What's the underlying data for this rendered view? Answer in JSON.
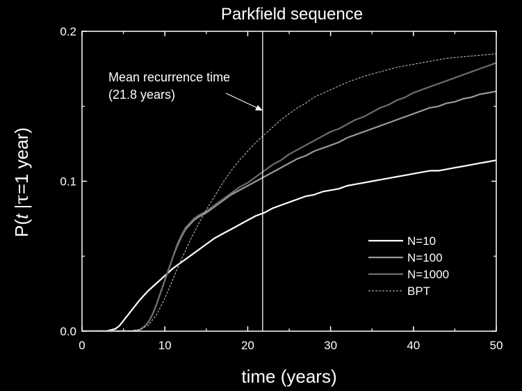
{
  "chart_data": {
    "type": "line",
    "title": "Parkfield sequence",
    "xlabel": "time (years)",
    "ylabel": {
      "prefix": "P(",
      "t": "t",
      "sep": " |",
      "tau": "τ",
      "suffix": "=1 year)"
    },
    "xlim": [
      0,
      50
    ],
    "ylim": [
      0,
      0.2
    ],
    "xticks": [
      0,
      10,
      20,
      30,
      40,
      50
    ],
    "xtick_labels": [
      "0",
      "10",
      "20",
      "30",
      "40",
      "50"
    ],
    "yticks": [
      0,
      0.1,
      0.2
    ],
    "ytick_labels": [
      "0.0",
      "0.1",
      "0.2"
    ],
    "grid": false,
    "legend_position": "bottom-right",
    "annotation": {
      "line1": "Mean recurrence time",
      "line2": "(21.8 years)",
      "x_value": 21.8
    },
    "series": [
      {
        "name": "N=10",
        "color": "#ffffff",
        "dash": "solid",
        "x": [
          0,
          3,
          4,
          4.5,
          5,
          6,
          7,
          8,
          9,
          10,
          11,
          12,
          13,
          14,
          15,
          16,
          17,
          18,
          19,
          20,
          21,
          22,
          23,
          24,
          25,
          26,
          27,
          28,
          29,
          30,
          31,
          32,
          33,
          34,
          35,
          36,
          37,
          38,
          39,
          40,
          41,
          42,
          43,
          44,
          45,
          46,
          47,
          48,
          49,
          50
        ],
        "y": [
          0,
          0.0002,
          0.0015,
          0.0035,
          0.007,
          0.014,
          0.021,
          0.027,
          0.032,
          0.037,
          0.042,
          0.046,
          0.05,
          0.054,
          0.058,
          0.062,
          0.065,
          0.068,
          0.071,
          0.074,
          0.077,
          0.079,
          0.082,
          0.084,
          0.086,
          0.088,
          0.09,
          0.091,
          0.093,
          0.094,
          0.095,
          0.097,
          0.098,
          0.099,
          0.1,
          0.101,
          0.102,
          0.103,
          0.104,
          0.105,
          0.106,
          0.107,
          0.107,
          0.108,
          0.109,
          0.11,
          0.111,
          0.112,
          0.113,
          0.114
        ]
      },
      {
        "name": "N=100",
        "color": "#9a9a9a",
        "dash": "solid",
        "x": [
          0,
          6,
          7,
          7.5,
          8,
          8.5,
          9,
          9.5,
          10,
          10.5,
          11,
          11.5,
          12,
          12.5,
          13,
          13.5,
          14,
          15,
          16,
          17,
          18,
          19,
          20,
          21,
          22,
          23,
          24,
          25,
          26,
          27,
          28,
          29,
          30,
          31,
          32,
          33,
          34,
          35,
          36,
          37,
          38,
          39,
          40,
          41,
          42,
          43,
          44,
          45,
          46,
          47,
          48,
          49,
          50
        ],
        "y": [
          0,
          0.0002,
          0.001,
          0.003,
          0.006,
          0.011,
          0.018,
          0.026,
          0.034,
          0.042,
          0.05,
          0.057,
          0.063,
          0.068,
          0.071,
          0.074,
          0.076,
          0.079,
          0.083,
          0.087,
          0.091,
          0.094,
          0.097,
          0.1,
          0.103,
          0.106,
          0.109,
          0.112,
          0.115,
          0.117,
          0.12,
          0.122,
          0.124,
          0.126,
          0.129,
          0.131,
          0.133,
          0.135,
          0.137,
          0.139,
          0.141,
          0.143,
          0.145,
          0.147,
          0.149,
          0.15,
          0.152,
          0.153,
          0.155,
          0.156,
          0.158,
          0.159,
          0.16
        ]
      },
      {
        "name": "N=1000",
        "color": "#6e6e6e",
        "dash": "solid",
        "x": [
          0,
          6,
          7,
          7.5,
          8,
          8.5,
          9,
          9.5,
          10,
          10.5,
          11,
          11.5,
          12,
          12.5,
          13,
          13.5,
          14,
          15,
          16,
          17,
          18,
          19,
          20,
          21,
          22,
          23,
          24,
          25,
          26,
          27,
          28,
          29,
          30,
          31,
          32,
          33,
          34,
          35,
          36,
          37,
          38,
          39,
          40,
          41,
          42,
          43,
          44,
          45,
          46,
          47,
          48,
          49,
          50
        ],
        "y": [
          0,
          0.0002,
          0.001,
          0.003,
          0.006,
          0.011,
          0.018,
          0.026,
          0.034,
          0.042,
          0.05,
          0.058,
          0.064,
          0.069,
          0.072,
          0.075,
          0.077,
          0.08,
          0.084,
          0.088,
          0.092,
          0.096,
          0.099,
          0.103,
          0.107,
          0.111,
          0.114,
          0.118,
          0.121,
          0.124,
          0.127,
          0.13,
          0.133,
          0.135,
          0.138,
          0.141,
          0.143,
          0.146,
          0.149,
          0.151,
          0.154,
          0.156,
          0.159,
          0.161,
          0.163,
          0.165,
          0.167,
          0.169,
          0.171,
          0.173,
          0.175,
          0.177,
          0.179
        ]
      },
      {
        "name": "BPT",
        "color": "#d0d0d0",
        "dash": "dashed",
        "x": [
          0,
          6,
          7,
          8,
          9,
          10,
          11,
          12,
          13,
          14,
          15,
          16,
          17,
          18,
          19,
          20,
          21,
          22,
          23,
          24,
          25,
          26,
          27,
          28,
          30,
          32,
          34,
          36,
          38,
          40,
          42,
          44,
          46,
          48,
          50
        ],
        "y": [
          0,
          0.0001,
          0.001,
          0.004,
          0.011,
          0.022,
          0.035,
          0.048,
          0.06,
          0.071,
          0.081,
          0.09,
          0.099,
          0.107,
          0.114,
          0.12,
          0.126,
          0.131,
          0.136,
          0.141,
          0.145,
          0.149,
          0.152,
          0.156,
          0.161,
          0.166,
          0.17,
          0.173,
          0.176,
          0.178,
          0.18,
          0.182,
          0.183,
          0.184,
          0.185
        ]
      }
    ]
  }
}
